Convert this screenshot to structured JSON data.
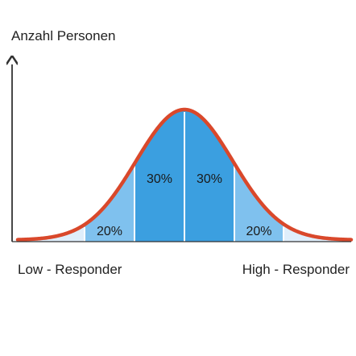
{
  "chart_data": {
    "type": "area",
    "ylabel": "Anzahl Personen",
    "x_start_label": "Low - Responder",
    "x_end_label": "High - Responder",
    "grid": false,
    "segments": [
      {
        "label": "",
        "share": "tail",
        "color": "#dfeefb"
      },
      {
        "label": "20%",
        "share": 20,
        "color": "#7fc1ee"
      },
      {
        "label": "30%",
        "share": 30,
        "color": "#3b9fe0"
      },
      {
        "label": "30%",
        "share": 30,
        "color": "#3b9fe0"
      },
      {
        "label": "20%",
        "share": 20,
        "color": "#7fc1ee"
      },
      {
        "label": "",
        "share": "tail",
        "color": "#dfeefb"
      }
    ],
    "curve": {
      "shape": "normal",
      "color": "#d9482b"
    },
    "axis_color": "#333333"
  }
}
